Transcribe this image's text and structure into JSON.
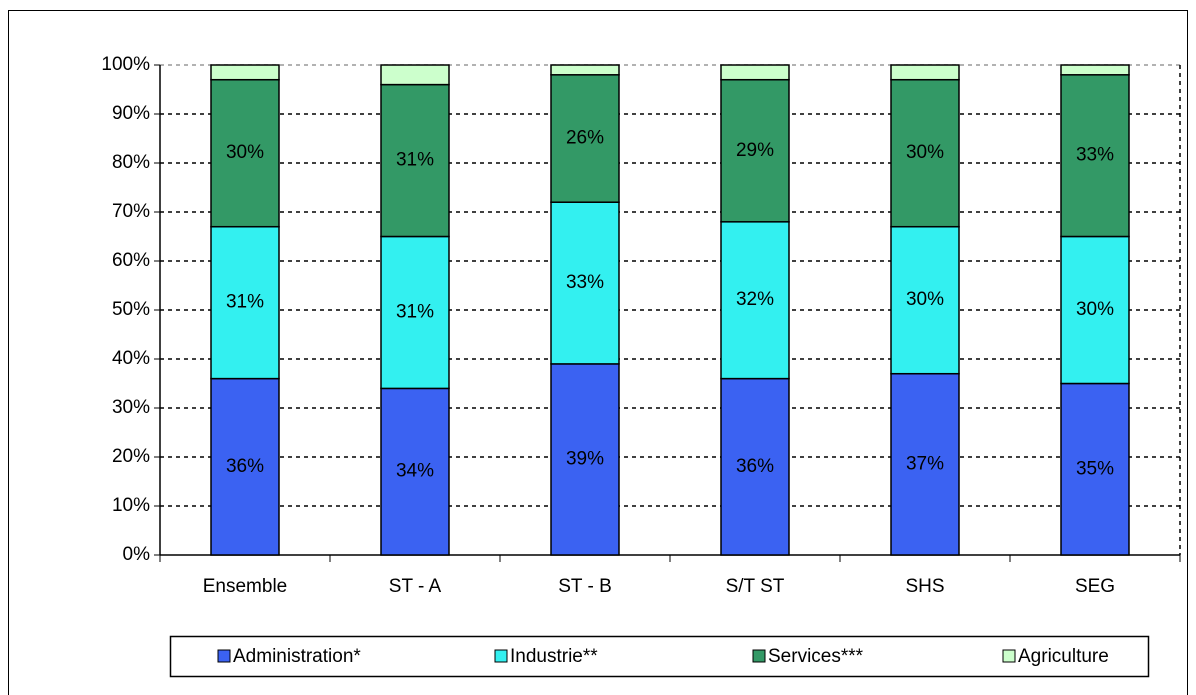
{
  "chart_data": {
    "type": "stacked_bar",
    "categories": [
      "Ensemble",
      "ST - A",
      "ST - B",
      "S/T ST",
      "SHS",
      "SEG"
    ],
    "series": [
      {
        "name": "Administration*",
        "color": "#3b62f2",
        "values": [
          36,
          34,
          39,
          36,
          37,
          35
        ],
        "value_labels": [
          "36%",
          "34%",
          "39%",
          "36%",
          "37%",
          "35%"
        ]
      },
      {
        "name": "Industrie**",
        "color": "#33f0f0",
        "values": [
          31,
          31,
          33,
          32,
          30,
          30
        ],
        "value_labels": [
          "31%",
          "31%",
          "33%",
          "32%",
          "30%",
          "30%"
        ]
      },
      {
        "name": "Services***",
        "color": "#339966",
        "values": [
          30,
          31,
          26,
          29,
          30,
          33
        ],
        "value_labels": [
          "30%",
          "31%",
          "26%",
          "29%",
          "30%",
          "33%"
        ]
      },
      {
        "name": "Agriculture",
        "color": "#ccffcc",
        "values": [
          3,
          4,
          2,
          3,
          3,
          2
        ]
      }
    ],
    "ylim": [
      0,
      100
    ],
    "yticks": [
      {
        "value": 0,
        "label": "0%"
      },
      {
        "value": 10,
        "label": "10%"
      },
      {
        "value": 20,
        "label": "20%"
      },
      {
        "value": 30,
        "label": "30%"
      },
      {
        "value": 40,
        "label": "40%"
      },
      {
        "value": 50,
        "label": "50%"
      },
      {
        "value": 60,
        "label": "60%"
      },
      {
        "value": 70,
        "label": "70%"
      },
      {
        "value": 80,
        "label": "80%"
      },
      {
        "value": 90,
        "label": "90%"
      },
      {
        "value": 100,
        "label": "100%"
      }
    ],
    "grid": true,
    "legend": "bottom"
  }
}
